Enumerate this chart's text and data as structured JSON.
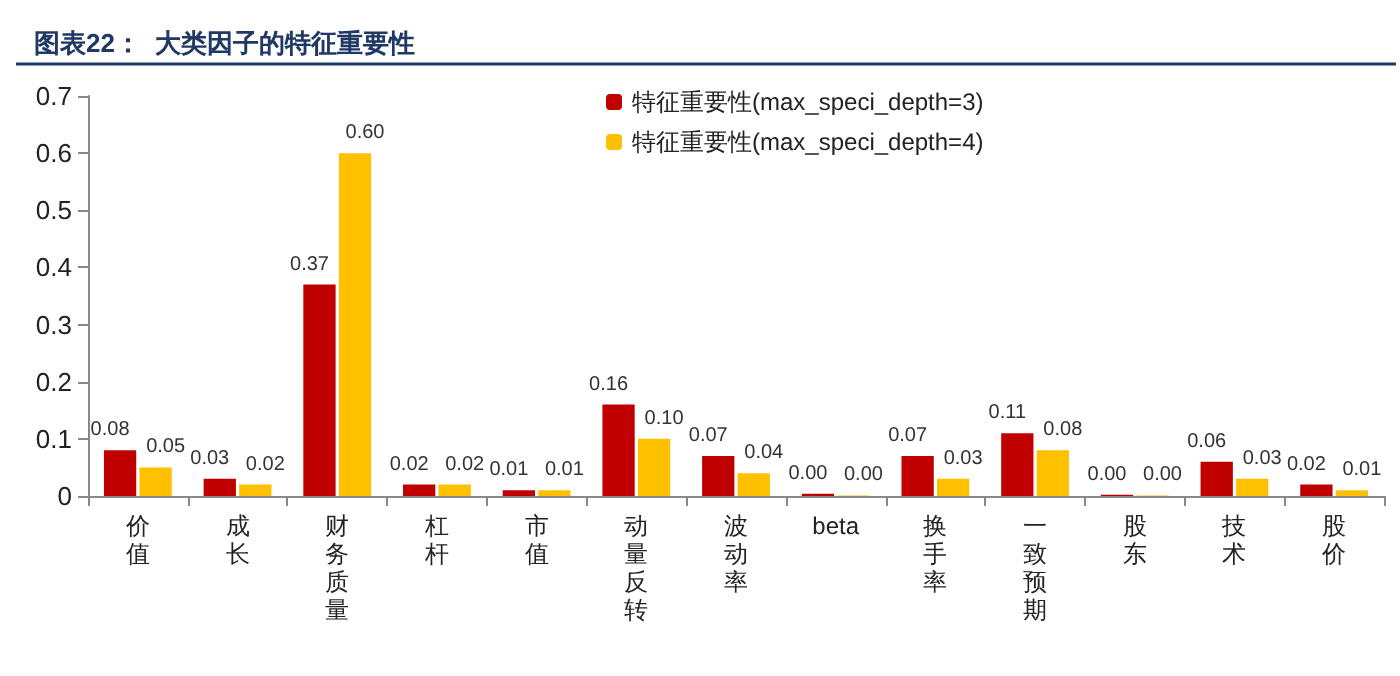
{
  "chart_data": {
    "type": "bar",
    "title": "图表22：  大类因子的特征重要性",
    "categories": [
      "价值",
      "成长",
      "财务质量",
      "杠杆",
      "市值",
      "动量反转",
      "波动率",
      "beta",
      "换手率",
      "一致预期",
      "股东",
      "技术",
      "股价"
    ],
    "series": [
      {
        "name": "特征重要性(max_speci_depth=3)",
        "color": "#c00000",
        "values": [
          0.08,
          0.03,
          0.37,
          0.02,
          0.01,
          0.16,
          0.07,
          0.004,
          0.07,
          0.11,
          0.002,
          0.06,
          0.02
        ],
        "value_labels": [
          "0.08",
          "0.03",
          "0.37",
          "0.02",
          "0.01",
          "0.16",
          "0.07",
          "0.00",
          "0.07",
          "0.11",
          "0.00",
          "0.06",
          "0.02"
        ]
      },
      {
        "name": "特征重要性(max_speci_depth=4)",
        "color": "#ffc000",
        "values": [
          0.05,
          0.02,
          0.6,
          0.02,
          0.01,
          0.1,
          0.04,
          0.001,
          0.03,
          0.08,
          0.001,
          0.03,
          0.01
        ],
        "value_labels": [
          "0.05",
          "0.02",
          "0.60",
          "0.02",
          "0.01",
          "0.10",
          "0.04",
          "0.00",
          "0.03",
          "0.08",
          "0.00",
          "0.03",
          "0.01"
        ]
      }
    ],
    "ylim": [
      0,
      0.7
    ],
    "yticks": [
      0,
      0.1,
      0.2,
      0.3,
      0.4,
      0.5,
      0.6,
      0.7
    ],
    "grid": false,
    "legend": "top"
  }
}
